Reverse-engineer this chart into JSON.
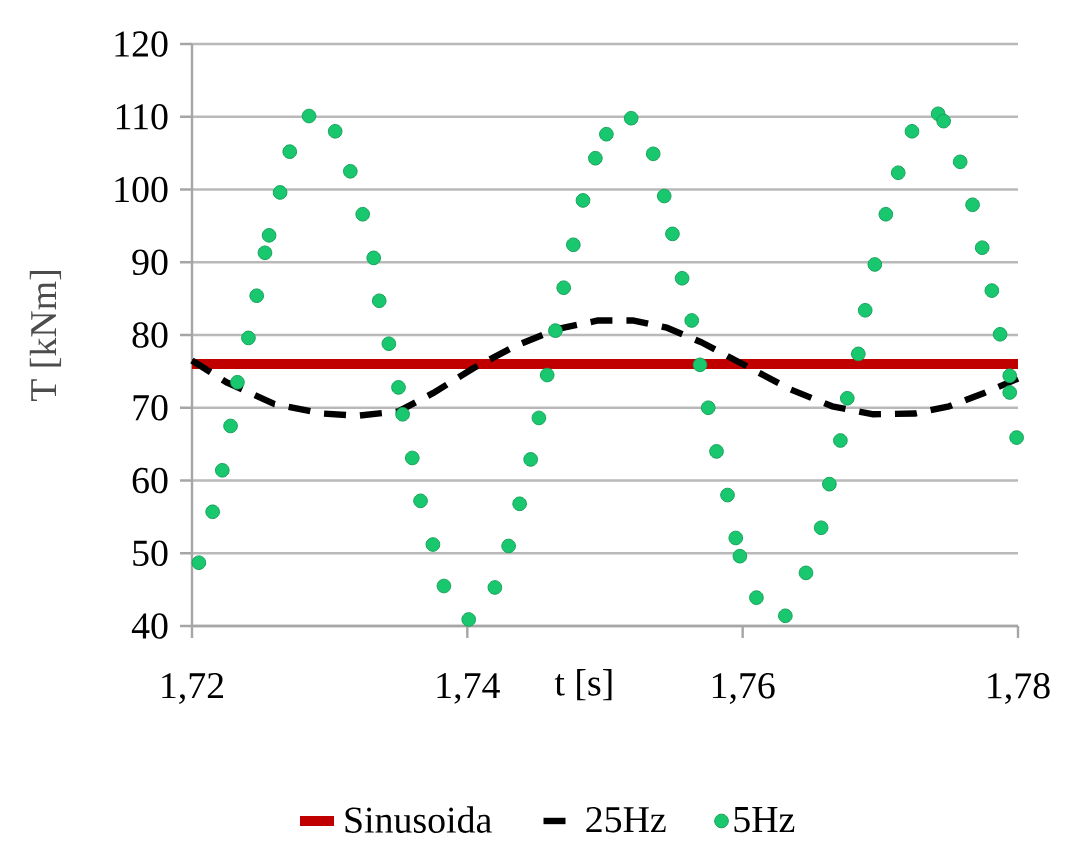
{
  "chart_data": {
    "type": "line",
    "xlabel": "t [s]",
    "ylabel": "T [kNm]",
    "xlim": [
      1.72,
      1.78
    ],
    "ylim": [
      40,
      120
    ],
    "xticks": [
      {
        "value": 1.72,
        "label": "1,72"
      },
      {
        "value": 1.74,
        "label": "1,74"
      },
      {
        "value": 1.76,
        "label": "1,76"
      },
      {
        "value": 1.78,
        "label": "1,78"
      }
    ],
    "yticks": [
      40,
      50,
      60,
      70,
      80,
      90,
      100,
      110,
      120
    ],
    "grid": "y",
    "legend": "bottom",
    "series": [
      {
        "name": "Sinusoida",
        "type": "line",
        "color": "#c00000",
        "line_style": "solid",
        "marker": "none",
        "x": [
          1.72,
          1.78
        ],
        "values": [
          76,
          76
        ]
      },
      {
        "name": "25Hz",
        "type": "line",
        "color": "#000000",
        "line_style": "dashed",
        "marker": "none",
        "x": [
          1.72,
          1.7225,
          1.726,
          1.7295,
          1.732,
          1.735,
          1.7375,
          1.7405,
          1.7435,
          1.7465,
          1.7495,
          1.752,
          1.7545,
          1.757,
          1.7605,
          1.7635,
          1.7665,
          1.7695,
          1.7725,
          1.775,
          1.7775,
          1.78
        ],
        "values": [
          76.5,
          73.5,
          70.5,
          69.2,
          68.9,
          69.5,
          72,
          75.5,
          78.5,
          80.8,
          82,
          82,
          81,
          79,
          75.5,
          72.5,
          70.2,
          69.1,
          69.2,
          70.2,
          72,
          74
        ]
      },
      {
        "name": "5Hz",
        "type": "scatter",
        "color": "#19c86e",
        "marker": "circle",
        "x": [
          1.7205,
          1.7215,
          1.7222,
          1.7228,
          1.7233,
          1.7241,
          1.7247,
          1.7253,
          1.7256,
          1.7264,
          1.7271,
          1.7285,
          1.7304,
          1.7315,
          1.7324,
          1.7332,
          1.7336,
          1.7343,
          1.735,
          1.7353,
          1.736,
          1.7366,
          1.7375,
          1.7383,
          1.7401,
          1.742,
          1.743,
          1.7438,
          1.7446,
          1.7452,
          1.7458,
          1.7464,
          1.747,
          1.7477,
          1.7484,
          1.7493,
          1.7501,
          1.7519,
          1.7535,
          1.7543,
          1.7549,
          1.7556,
          1.7563,
          1.7569,
          1.7575,
          1.7581,
          1.7589,
          1.7595,
          1.7598,
          1.761,
          1.7631,
          1.7646,
          1.7657,
          1.7663,
          1.7671,
          1.7676,
          1.7684,
          1.7689,
          1.7696,
          1.7704,
          1.7713,
          1.7723,
          1.7742,
          1.7746,
          1.7758,
          1.7767,
          1.7774,
          1.7781,
          1.7787,
          1.7794,
          1.7794,
          1.7799
        ],
        "values": [
          48.7,
          55.7,
          61.4,
          67.5,
          73.5,
          79.6,
          85.4,
          91.3,
          93.7,
          99.6,
          105.2,
          110.1,
          108.0,
          102.5,
          96.6,
          90.6,
          84.7,
          78.8,
          72.8,
          69.1,
          63.1,
          57.2,
          51.2,
          45.5,
          40.9,
          45.3,
          51.0,
          56.8,
          62.9,
          68.6,
          74.5,
          80.6,
          86.5,
          92.4,
          98.5,
          104.3,
          107.6,
          109.8,
          104.9,
          99.1,
          93.9,
          87.8,
          82.0,
          75.9,
          70.0,
          64.0,
          58.0,
          52.1,
          49.6,
          43.9,
          41.4,
          47.3,
          53.5,
          59.5,
          65.5,
          71.3,
          77.4,
          83.4,
          89.7,
          96.6,
          102.3,
          108.0,
          110.4,
          109.4,
          103.8,
          97.9,
          92.0,
          86.1,
          80.1,
          74.4,
          72.1,
          65.9
        ]
      }
    ]
  }
}
